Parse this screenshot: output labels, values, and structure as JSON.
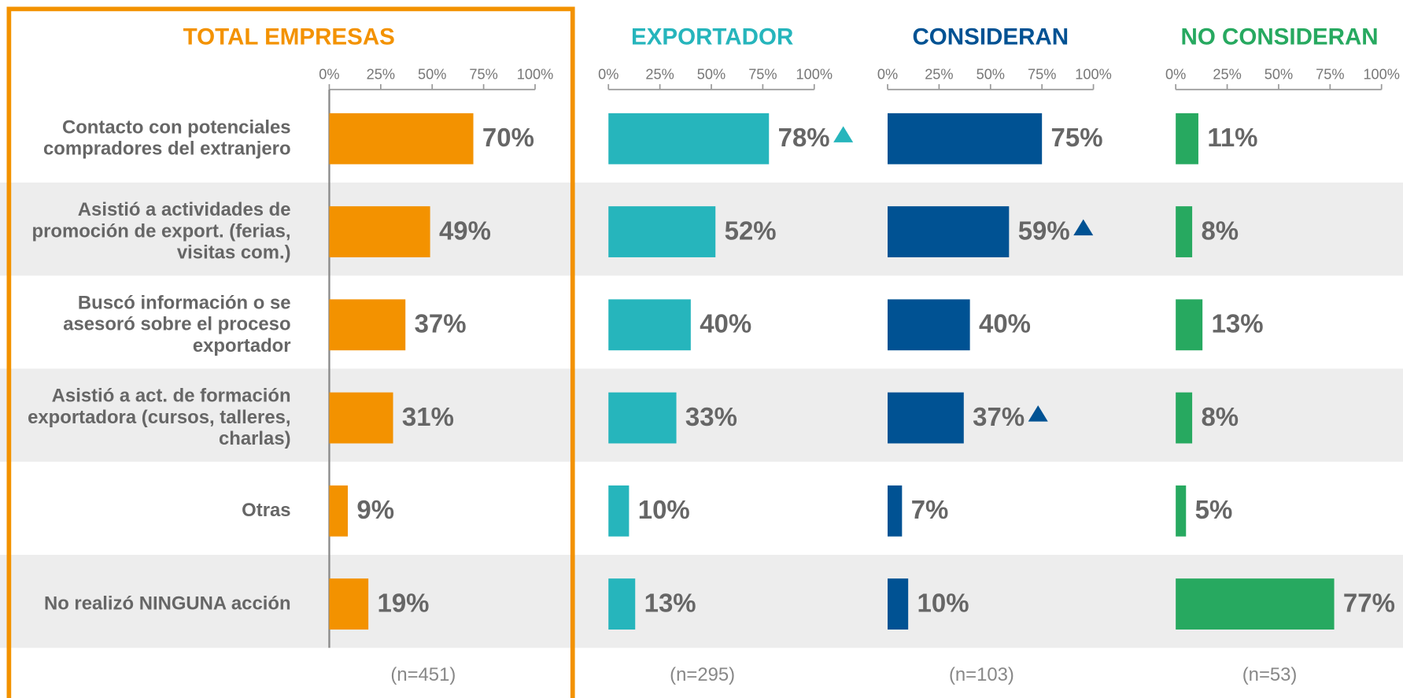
{
  "chart_data": [
    {
      "type": "bar",
      "orientation": "horizontal",
      "title": "TOTAL EMPRESAS",
      "note": "(n=451)",
      "color": "#f39200",
      "categories": [
        "Contacto con potenciales compradores del extranjero",
        "Asistió a actividades de promoción de export. (ferias, visitas com.)",
        "Buscó información o se asesoró sobre el proceso exportador",
        "Asistió a act. de formación exportadora (cursos, talleres, charlas)",
        "Otras",
        "No realizó NINGUNA acción"
      ],
      "values": [
        70,
        49,
        37,
        31,
        9,
        19
      ],
      "value_labels": [
        "70%",
        "49%",
        "37%",
        "31%",
        "9%",
        "19%"
      ],
      "xlim": [
        0,
        100
      ],
      "xticks": [
        {
          "value": 0,
          "label": "0%"
        },
        {
          "value": 25,
          "label": "25%"
        },
        {
          "value": 50,
          "label": "50%"
        },
        {
          "value": 75,
          "label": "75%"
        },
        {
          "value": 100,
          "label": "100%"
        }
      ],
      "zero_line": true,
      "markers": []
    },
    {
      "type": "bar",
      "orientation": "horizontal",
      "title": "EXPORTADOR",
      "note": "(n=295)",
      "color": "#26b5bc",
      "values": [
        78,
        52,
        40,
        33,
        10,
        13
      ],
      "value_labels": [
        "78%",
        "52%",
        "40%",
        "33%",
        "10%",
        "13%"
      ],
      "xlim": [
        0,
        100
      ],
      "xticks": [
        {
          "value": 0,
          "label": "0%"
        },
        {
          "value": 25,
          "label": "25%"
        },
        {
          "value": 50,
          "label": "50%"
        },
        {
          "value": 75,
          "label": "75%"
        },
        {
          "value": 100,
          "label": "100%"
        }
      ],
      "zero_line": false,
      "markers": [
        0
      ]
    },
    {
      "type": "bar",
      "orientation": "horizontal",
      "title": "CONSIDERAN",
      "note": "(n=103)",
      "color": "#005293",
      "values": [
        75,
        59,
        40,
        37,
        7,
        10
      ],
      "value_labels": [
        "75%",
        "59%",
        "40%",
        "37%",
        "7%",
        "10%"
      ],
      "xlim": [
        0,
        100
      ],
      "xticks": [
        {
          "value": 0,
          "label": "0%"
        },
        {
          "value": 25,
          "label": "25%"
        },
        {
          "value": 50,
          "label": "50%"
        },
        {
          "value": 75,
          "label": "75%"
        },
        {
          "value": 100,
          "label": "100%"
        }
      ],
      "zero_line": false,
      "markers": [
        1,
        3
      ]
    },
    {
      "type": "bar",
      "orientation": "horizontal",
      "title": "NO CONSIDERAN",
      "note": "(n=53)",
      "color": "#27a960",
      "values": [
        11,
        8,
        13,
        8,
        5,
        77
      ],
      "value_labels": [
        "11%",
        "8%",
        "13%",
        "8%",
        "5%",
        "77%"
      ],
      "xlim": [
        0,
        100
      ],
      "xticks": [
        {
          "value": 0,
          "label": "0%"
        },
        {
          "value": 25,
          "label": "25%"
        },
        {
          "value": 50,
          "label": "50%"
        },
        {
          "value": 75,
          "label": "75%"
        },
        {
          "value": 100,
          "label": "100%"
        }
      ],
      "zero_line": false,
      "markers": []
    }
  ]
}
